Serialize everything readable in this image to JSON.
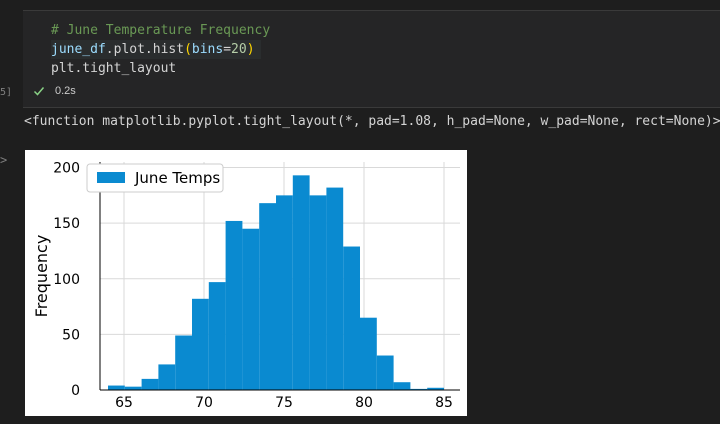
{
  "cell": {
    "input_counter": "5]",
    "output_counter": ">",
    "code_lines": [
      [
        {
          "t": "# June Temperature Frequency",
          "c": "c-comment"
        }
      ],
      [
        {
          "t": "june_df",
          "c": "c-ident"
        },
        {
          "t": ".plot.hist",
          "c": "c-plain"
        },
        {
          "t": "(",
          "c": "c-paren"
        },
        {
          "t": "bins",
          "c": "c-param"
        },
        {
          "t": "=",
          "c": "c-plain"
        },
        {
          "t": "20",
          "c": "c-num"
        },
        {
          "t": ")",
          "c": "c-paren"
        }
      ],
      [
        {
          "t": "plt.tight_layout",
          "c": "c-plain"
        }
      ]
    ],
    "exec_time": "0.2s",
    "status_color": "#89d185"
  },
  "output": {
    "text": "<function matplotlib.pyplot.tight_layout(*, pad=1.08, h_pad=None, w_pad=None, rect=None)>"
  },
  "chart_data": {
    "type": "bar",
    "title": "",
    "xlabel": "",
    "ylabel": "Frequency",
    "legend": "June Temps",
    "legend_position": "top-left",
    "grid": true,
    "bar_color": "#0a8ad0",
    "xlim": [
      63.5,
      86
    ],
    "ylim": [
      0,
      205
    ],
    "xticks": [
      65,
      70,
      75,
      80,
      85
    ],
    "yticks": [
      0,
      50,
      100,
      150,
      200
    ],
    "bin_start": 64,
    "bin_width": 1.05,
    "values": [
      4,
      3,
      10,
      23,
      49,
      82,
      97,
      152,
      145,
      168,
      175,
      193,
      175,
      182,
      129,
      65,
      31,
      7,
      1,
      2
    ]
  }
}
